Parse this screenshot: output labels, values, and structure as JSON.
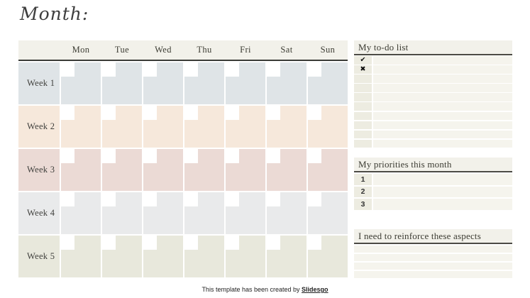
{
  "page": {
    "title": "Month:",
    "footer": {
      "text": "This template has been created by ",
      "link": "Slidesgo"
    }
  },
  "calendar": {
    "day_headers": [
      "Mon",
      "Tue",
      "Wed",
      "Thu",
      "Fri",
      "Sat",
      "Sun"
    ],
    "weeks": [
      {
        "label": "Week 1",
        "color": "#dfe4e7"
      },
      {
        "label": "Week 2",
        "color": "#f6e8db"
      },
      {
        "label": "Week 3",
        "color": "#ebdad5"
      },
      {
        "label": "Week 4",
        "color": "#e9eaeb"
      },
      {
        "label": "Week 5",
        "color": "#e8e8dc"
      }
    ]
  },
  "sidebar": {
    "todo": {
      "title": "My to-do list",
      "check_symbol": "✔",
      "cross_symbol": "✖",
      "row_count": 10
    },
    "priorities": {
      "title": "My priorities this month",
      "items": [
        "1",
        "2",
        "3"
      ]
    },
    "reinforce": {
      "title": "I need to reinforce these aspects",
      "row_count": 4
    }
  },
  "colors": {
    "band": "#f2f1ea",
    "header_line": "#3b3b37",
    "sidebar_line": "#4c4b45",
    "row_bg": "#f5f4ed",
    "row_col_bg": "#edece1",
    "text_dark": "#3c3c33"
  }
}
